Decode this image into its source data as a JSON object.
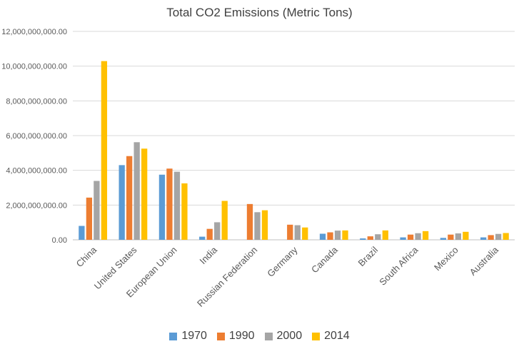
{
  "chart_data": {
    "type": "bar",
    "title": "Total CO2 Emissions (Metric Tons)",
    "xlabel": "",
    "ylabel": "",
    "ylim": [
      0,
      12000000000
    ],
    "yticks": [
      0,
      2000000000,
      4000000000,
      6000000000,
      8000000000,
      10000000000,
      12000000000
    ],
    "ytick_labels": [
      "0.00",
      "2,000,000,000.00",
      "4,000,000,000.00",
      "6,000,000,000.00",
      "8,000,000,000.00",
      "10,000,000,000.00",
      "12,000,000,000.00"
    ],
    "grid": true,
    "legend_position": "bottom",
    "categories": [
      "China",
      "United States",
      "European Union",
      "India",
      "Russian Federation",
      "Germany",
      "Canada",
      "Brazil",
      "South Africa",
      "Mexico",
      "Australia"
    ],
    "series": [
      {
        "name": "1970",
        "color": "#5B9BD5",
        "values": [
          800000000,
          4300000000,
          3750000000,
          180000000,
          null,
          null,
          350000000,
          80000000,
          140000000,
          110000000,
          140000000
        ]
      },
      {
        "name": "1990",
        "color": "#ED7D31",
        "values": [
          2430000000,
          4820000000,
          4100000000,
          630000000,
          2060000000,
          870000000,
          430000000,
          200000000,
          300000000,
          300000000,
          270000000
        ]
      },
      {
        "name": "2000",
        "color": "#A5A5A5",
        "values": [
          3390000000,
          5620000000,
          3920000000,
          1010000000,
          1590000000,
          840000000,
          530000000,
          320000000,
          380000000,
          370000000,
          340000000
        ]
      },
      {
        "name": "2014",
        "color": "#FFC000",
        "values": [
          10290000000,
          5250000000,
          3250000000,
          2240000000,
          1700000000,
          710000000,
          540000000,
          540000000,
          500000000,
          460000000,
          390000000
        ]
      }
    ]
  }
}
